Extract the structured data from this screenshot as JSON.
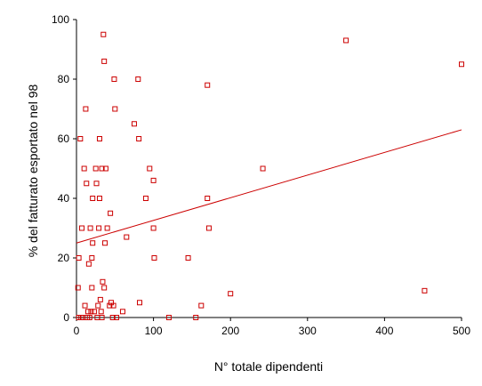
{
  "chart_data": {
    "type": "scatter",
    "title": "",
    "xlabel": "N° totale dipendenti",
    "ylabel": "% del fatturato esportato nel 98",
    "xlim": [
      0,
      500
    ],
    "ylim": [
      0,
      100
    ],
    "x_ticks": [
      "0",
      "100",
      "200",
      "300",
      "400",
      "500"
    ],
    "y_ticks": [
      "0",
      "20",
      "40",
      "60",
      "80",
      "100"
    ],
    "grid": false,
    "legend": "none",
    "marker": "hollow-square",
    "color": "#cc0000",
    "points": [
      [
        2,
        10
      ],
      [
        3,
        0
      ],
      [
        3,
        20
      ],
      [
        5,
        60
      ],
      [
        6,
        0
      ],
      [
        7,
        30
      ],
      [
        8,
        0
      ],
      [
        10,
        50
      ],
      [
        11,
        4
      ],
      [
        12,
        70
      ],
      [
        13,
        45
      ],
      [
        14,
        0
      ],
      [
        15,
        2
      ],
      [
        16,
        18
      ],
      [
        17,
        0
      ],
      [
        18,
        30
      ],
      [
        19,
        2
      ],
      [
        20,
        10
      ],
      [
        20,
        20
      ],
      [
        21,
        40
      ],
      [
        21,
        25
      ],
      [
        23,
        2
      ],
      [
        25,
        50
      ],
      [
        26,
        45
      ],
      [
        27,
        0
      ],
      [
        28,
        4
      ],
      [
        29,
        30
      ],
      [
        30,
        40
      ],
      [
        30,
        60
      ],
      [
        31,
        6
      ],
      [
        32,
        2
      ],
      [
        33,
        50
      ],
      [
        33,
        0
      ],
      [
        34,
        12
      ],
      [
        35,
        95
      ],
      [
        36,
        86
      ],
      [
        36,
        10
      ],
      [
        37,
        25
      ],
      [
        38,
        50
      ],
      [
        40,
        30
      ],
      [
        43,
        4
      ],
      [
        44,
        35
      ],
      [
        45,
        5
      ],
      [
        47,
        0
      ],
      [
        48,
        4
      ],
      [
        49,
        80
      ],
      [
        50,
        70
      ],
      [
        52,
        0
      ],
      [
        60,
        2
      ],
      [
        65,
        27
      ],
      [
        75,
        65
      ],
      [
        80,
        80
      ],
      [
        81,
        60
      ],
      [
        82,
        5
      ],
      [
        90,
        40
      ],
      [
        95,
        50
      ],
      [
        100,
        46
      ],
      [
        100,
        30
      ],
      [
        101,
        20
      ],
      [
        120,
        0
      ],
      [
        145,
        20
      ],
      [
        155,
        0
      ],
      [
        162,
        4
      ],
      [
        170,
        78
      ],
      [
        170,
        40
      ],
      [
        172,
        30
      ],
      [
        200,
        8
      ],
      [
        242,
        50
      ],
      [
        350,
        93
      ],
      [
        452,
        9
      ],
      [
        500,
        85
      ]
    ],
    "fit_line": {
      "x": [
        0,
        500
      ],
      "y": [
        25,
        63
      ]
    }
  }
}
